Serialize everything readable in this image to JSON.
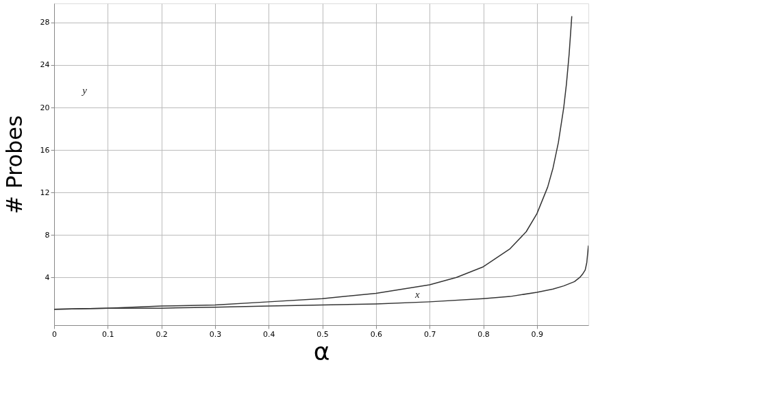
{
  "chart_data": {
    "type": "line",
    "xlabel": "α",
    "ylabel": "# Probes",
    "series": [
      {
        "color": "#333333",
        "x": [
          0,
          0.1,
          0.2,
          0.3,
          0.4,
          0.5,
          0.6,
          0.7,
          0.75,
          0.8,
          0.85,
          0.88,
          0.9,
          0.92,
          0.93,
          0.94,
          0.95,
          0.955,
          0.96,
          0.965
        ],
        "values": [
          1,
          1.1,
          1.3,
          1.4,
          1.7,
          2,
          2.5,
          3.3,
          4,
          5,
          6.7,
          8.3,
          10,
          12.5,
          14.3,
          16.7,
          20,
          22.2,
          25,
          28.6
        ]
      },
      {
        "color": "#333333",
        "x": [
          0,
          0.1,
          0.2,
          0.3,
          0.4,
          0.5,
          0.6,
          0.7,
          0.8,
          0.85,
          0.9,
          0.93,
          0.95,
          0.97,
          0.98,
          0.985,
          0.99,
          0.993,
          0.996
        ],
        "values": [
          1,
          1.1,
          1.1,
          1.2,
          1.3,
          1.4,
          1.5,
          1.7,
          2,
          2.2,
          2.6,
          2.9,
          3.2,
          3.6,
          4,
          4.3,
          4.7,
          5.4,
          7
        ]
      }
    ],
    "annotations": [
      "y",
      "x"
    ],
    "xlim": [
      0,
      0.996
    ],
    "ylim": [
      -0.5,
      29.8
    ],
    "xticks": [
      0,
      0.1,
      0.2,
      0.3,
      0.4,
      0.5,
      0.6,
      0.7,
      0.8,
      0.9
    ],
    "yticks": [
      4,
      8,
      12,
      16,
      20,
      24,
      28
    ],
    "grid": true,
    "marker": "none",
    "line_style": "solid"
  }
}
